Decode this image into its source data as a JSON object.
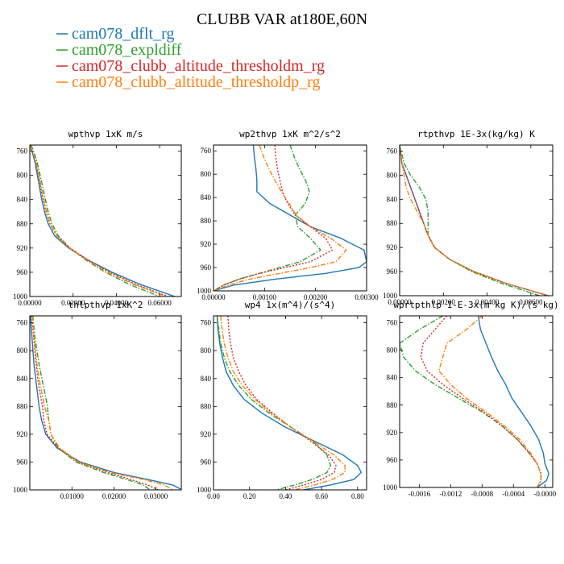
{
  "figure": {
    "title": "CLUBB VAR at180E,60N",
    "legend": [
      {
        "label": "cam078_dflt_rg",
        "color": "#1f77b4",
        "dash": "solid"
      },
      {
        "label": "cam078_expldiff",
        "color": "#2ca02c",
        "dash": "dashdot"
      },
      {
        "label": "cam078_clubb_altitude_thresholdm_rg",
        "color": "#d62728",
        "dash": "dotted"
      },
      {
        "label": "cam078_clubb_altitude_thresholdp_rg",
        "color": "#ff7f0e",
        "dash": "dashdot"
      }
    ]
  },
  "chart_data": [
    {
      "type": "line",
      "title": "wpthvp  1xK m/s",
      "xlim": [
        0,
        0.07
      ],
      "ylim": [
        750,
        1000
      ],
      "y_inverted": true,
      "x_ticks": [
        0,
        0.02,
        0.04,
        0.06
      ],
      "x_tick_labels": [
        "0.00000",
        "0.02000",
        "0.04000",
        "0.06000"
      ],
      "y_ticks": [
        760,
        800,
        840,
        880,
        920,
        960,
        1000
      ],
      "y_tick_labels": [
        "760",
        "800",
        "840",
        "880",
        "920",
        "960",
        "1000"
      ],
      "y": [
        750,
        760,
        780,
        800,
        820,
        840,
        860,
        880,
        900,
        920,
        940,
        960,
        980,
        1000
      ],
      "series": [
        {
          "name": "cam078_dflt_rg",
          "x": [
            0.0,
            0.001,
            0.0025,
            0.0035,
            0.0045,
            0.0055,
            0.0068,
            0.0085,
            0.0115,
            0.018,
            0.027,
            0.038,
            0.051,
            0.067
          ]
        },
        {
          "name": "cam078_expldiff",
          "x": [
            0.0005,
            0.0018,
            0.0035,
            0.0048,
            0.006,
            0.0072,
            0.0085,
            0.0102,
            0.0132,
            0.0185,
            0.026,
            0.035,
            0.046,
            0.06
          ]
        },
        {
          "name": "cam078_clubb_altitude_thresholdm_rg",
          "x": [
            0.0,
            0.0012,
            0.0028,
            0.004,
            0.005,
            0.0062,
            0.0075,
            0.0093,
            0.0125,
            0.0185,
            0.027,
            0.037,
            0.049,
            0.064
          ]
        },
        {
          "name": "cam078_clubb_altitude_thresholdp_rg",
          "x": [
            0.0,
            0.0012,
            0.003,
            0.0042,
            0.0053,
            0.0065,
            0.0078,
            0.0095,
            0.0125,
            0.0185,
            0.0265,
            0.036,
            0.048,
            0.063
          ]
        }
      ]
    },
    {
      "type": "line",
      "title": "wp2thvp  1xK m^2/s^2",
      "xlim": [
        0,
        0.003
      ],
      "ylim": [
        750,
        1000
      ],
      "y_inverted": true,
      "x_ticks": [
        0,
        0.001,
        0.002,
        0.003
      ],
      "x_tick_labels": [
        "0.00000",
        "0.00100",
        "0.00200",
        "0.00300"
      ],
      "y_ticks": [
        760,
        800,
        840,
        880,
        920,
        960,
        1000
      ],
      "y_tick_labels": [
        "760",
        "800",
        "840",
        "880",
        "920",
        "960",
        "1000"
      ],
      "y": [
        750,
        770,
        790,
        810,
        830,
        850,
        870,
        890,
        910,
        930,
        950,
        960,
        970,
        980,
        990,
        1000
      ],
      "series": [
        {
          "name": "cam078_dflt_rg",
          "x": [
            0.00078,
            0.0008,
            0.00083,
            0.00085,
            0.00085,
            0.0011,
            0.0015,
            0.0019,
            0.0025,
            0.00295,
            0.003,
            0.00285,
            0.0022,
            0.0012,
            0.0004,
            0.0
          ]
        },
        {
          "name": "cam078_expldiff",
          "x": [
            0.0015,
            0.00158,
            0.00168,
            0.0018,
            0.00188,
            0.0018,
            0.0016,
            0.00165,
            0.0019,
            0.0021,
            0.0017,
            0.0013,
            0.0009,
            0.0005,
            0.0002,
            0.0
          ]
        },
        {
          "name": "cam078_clubb_altitude_thresholdm_rg",
          "x": [
            0.0012,
            0.00122,
            0.00125,
            0.0013,
            0.00135,
            0.00145,
            0.0016,
            0.0019,
            0.0022,
            0.00233,
            0.0019,
            0.0014,
            0.0009,
            0.0005,
            0.0002,
            0.0
          ]
        },
        {
          "name": "cam078_clubb_altitude_thresholdp_rg",
          "x": [
            0.0009,
            0.00098,
            0.00108,
            0.0012,
            0.00133,
            0.00148,
            0.00162,
            0.0019,
            0.0023,
            0.0026,
            0.0024,
            0.0019,
            0.0013,
            0.0007,
            0.0003,
            0.0
          ]
        }
      ]
    },
    {
      "type": "line",
      "title": "rtpthvp  1E-3x(kg/kg) K",
      "xlim": [
        0,
        0.007
      ],
      "ylim": [
        750,
        1000
      ],
      "y_inverted": true,
      "x_ticks": [
        0,
        0.002,
        0.004,
        0.006
      ],
      "x_tick_labels": [
        "0.00000",
        "0.00200",
        "0.00400",
        "0.00600"
      ],
      "y_ticks": [
        760,
        800,
        840,
        880,
        920,
        960,
        1000
      ],
      "y_tick_labels": [
        "760",
        "800",
        "840",
        "880",
        "920",
        "960",
        "1000"
      ],
      "y": [
        750,
        780,
        800,
        820,
        840,
        860,
        880,
        900,
        920,
        940,
        960,
        980,
        1000
      ],
      "series": [
        {
          "name": "cam078_dflt_rg",
          "x": [
            0.0,
            0.0001,
            0.0003,
            0.0005,
            0.0007,
            0.0009,
            0.0011,
            0.0013,
            0.0016,
            0.0023,
            0.0034,
            0.0049,
            0.0068
          ]
        },
        {
          "name": "cam078_expldiff",
          "x": [
            0.0,
            0.0002,
            0.0005,
            0.0009,
            0.0012,
            0.0013,
            0.0013,
            0.0013,
            0.0016,
            0.0023,
            0.0033,
            0.0047,
            0.0064
          ]
        },
        {
          "name": "cam078_clubb_altitude_thresholdm_rg",
          "x": [
            0.0,
            0.0001,
            0.0003,
            0.0005,
            0.0007,
            0.0009,
            0.0011,
            0.0013,
            0.0016,
            0.0023,
            0.0034,
            0.0049,
            0.0068
          ]
        },
        {
          "name": "cam078_clubb_altitude_thresholdp_rg",
          "x": [
            0.0,
            0.0001,
            0.0002,
            0.0003,
            0.0005,
            0.0008,
            0.0011,
            0.0013,
            0.0016,
            0.0023,
            0.0034,
            0.0049,
            0.0068
          ]
        }
      ]
    },
    {
      "type": "line",
      "title": "thlpthvp  1xK^2",
      "xlim": [
        0,
        0.036
      ],
      "ylim": [
        750,
        1000
      ],
      "y_inverted": true,
      "x_ticks": [
        0.01,
        0.02,
        0.03
      ],
      "x_tick_labels": [
        "0.01000",
        "0.02000",
        "0.03000"
      ],
      "y_ticks": [
        760,
        800,
        840,
        880,
        920,
        960,
        1000
      ],
      "y_tick_labels": [
        "760",
        "800",
        "840",
        "880",
        "920",
        "960",
        "1000"
      ],
      "y": [
        750,
        780,
        820,
        850,
        880,
        900,
        920,
        940,
        960,
        975,
        985,
        993,
        1000
      ],
      "series": [
        {
          "name": "cam078_dflt_rg",
          "x": [
            0.0002,
            0.0005,
            0.001,
            0.0016,
            0.0022,
            0.0028,
            0.0038,
            0.0065,
            0.012,
            0.02,
            0.028,
            0.034,
            0.0362
          ]
        },
        {
          "name": "cam078_expldiff",
          "x": [
            0.0007,
            0.0012,
            0.0022,
            0.0032,
            0.0042,
            0.0045,
            0.005,
            0.0068,
            0.011,
            0.0175,
            0.023,
            0.027,
            0.0286
          ]
        },
        {
          "name": "cam078_clubb_altitude_thresholdm_rg",
          "x": [
            0.0005,
            0.0009,
            0.0015,
            0.0021,
            0.003,
            0.0033,
            0.0041,
            0.0068,
            0.0115,
            0.0185,
            0.024,
            0.028,
            0.0305
          ]
        },
        {
          "name": "cam078_clubb_altitude_thresholdp_rg",
          "x": [
            0.0006,
            0.001,
            0.0017,
            0.0025,
            0.0035,
            0.0045,
            0.005,
            0.0071,
            0.0116,
            0.019,
            0.027,
            0.032,
            0.034
          ]
        }
      ]
    },
    {
      "type": "line",
      "title": "wp4  1x(m^4)/(s^4)",
      "xlim": [
        0,
        0.85
      ],
      "ylim": [
        750,
        1000
      ],
      "y_inverted": true,
      "x_ticks": [
        0,
        0.2,
        0.4,
        0.6,
        0.8
      ],
      "x_tick_labels": [
        "0.00",
        "0.20",
        "0.40",
        "0.60",
        "0.80"
      ],
      "y_ticks": [
        760,
        800,
        840,
        880,
        920,
        960,
        1000
      ],
      "y_tick_labels": [
        "760",
        "800",
        "840",
        "880",
        "920",
        "960",
        "1000"
      ],
      "y": [
        750,
        770,
        790,
        810,
        830,
        850,
        870,
        890,
        910,
        930,
        950,
        965,
        975,
        985,
        993,
        1000
      ],
      "series": [
        {
          "name": "cam078_dflt_rg",
          "x": [
            0.02,
            0.025,
            0.035,
            0.05,
            0.07,
            0.11,
            0.17,
            0.27,
            0.4,
            0.56,
            0.72,
            0.8,
            0.82,
            0.78,
            0.65,
            0.5
          ]
        },
        {
          "name": "cam078_expldiff",
          "x": [
            0.02,
            0.03,
            0.04,
            0.06,
            0.09,
            0.14,
            0.21,
            0.31,
            0.43,
            0.55,
            0.63,
            0.65,
            0.63,
            0.55,
            0.45,
            0.35
          ]
        },
        {
          "name": "cam078_clubb_altitude_thresholdm_rg",
          "x": [
            0.08,
            0.085,
            0.095,
            0.11,
            0.14,
            0.18,
            0.24,
            0.33,
            0.43,
            0.54,
            0.64,
            0.68,
            0.67,
            0.6,
            0.5,
            0.4
          ]
        },
        {
          "name": "cam078_clubb_altitude_thresholdp_rg",
          "x": [
            0.04,
            0.048,
            0.06,
            0.08,
            0.11,
            0.16,
            0.23,
            0.32,
            0.43,
            0.55,
            0.67,
            0.73,
            0.73,
            0.66,
            0.56,
            0.45
          ]
        }
      ]
    },
    {
      "type": "line",
      "title": "wprtpthlp  1-E-3x(m kg K)/(s kg)",
      "xlim": [
        -0.00185,
        0.0001
      ],
      "ylim": [
        750,
        1000
      ],
      "y_inverted": true,
      "x_ticks": [
        -0.0016,
        -0.0012,
        -0.0008,
        -0.0004,
        0.0
      ],
      "x_tick_labels": [
        "-0.0016",
        "-0.0012",
        "-0.0008",
        "-0.0004",
        "-0.0000"
      ],
      "y_ticks": [
        760,
        800,
        840,
        880,
        920,
        960,
        1000
      ],
      "y_tick_labels": [
        "760",
        "800",
        "840",
        "880",
        "920",
        "960",
        "1000"
      ],
      "y": [
        750,
        770,
        790,
        810,
        830,
        850,
        870,
        890,
        910,
        930,
        950,
        965,
        980,
        990,
        1000
      ],
      "series": [
        {
          "name": "cam078_dflt_rg",
          "x": [
            -0.00085,
            -0.00082,
            -0.00075,
            -0.00068,
            -0.0006,
            -0.0005,
            -0.00042,
            -0.0003,
            -0.00018,
            -8e-05,
            -2e-05,
            0.0,
            5e-05,
            2e-05,
            -0.0001
          ]
        },
        {
          "name": "cam078_expldiff",
          "x": [
            -0.0013,
            -0.0016,
            -0.00185,
            -0.0018,
            -0.00165,
            -0.0014,
            -0.0011,
            -0.0008,
            -0.00055,
            -0.00035,
            -0.0002,
            -0.0001,
            -5e-05,
            -5e-05,
            -0.0001
          ]
        },
        {
          "name": "cam078_clubb_altitude_thresholdm_rg",
          "x": [
            -0.00125,
            -0.0014,
            -0.00155,
            -0.00158,
            -0.0015,
            -0.0013,
            -0.00105,
            -0.00078,
            -0.00055,
            -0.00035,
            -0.0002,
            -0.0001,
            -5e-05,
            -5e-05,
            -0.0001
          ]
        },
        {
          "name": "cam078_clubb_altitude_thresholdp_rg",
          "x": [
            -0.0008,
            -0.001,
            -0.00125,
            -0.0013,
            -0.00135,
            -0.0012,
            -0.001,
            -0.00075,
            -0.00052,
            -0.00032,
            -0.00018,
            -0.0001,
            -5e-05,
            -5e-05,
            -0.0001
          ]
        }
      ]
    }
  ]
}
